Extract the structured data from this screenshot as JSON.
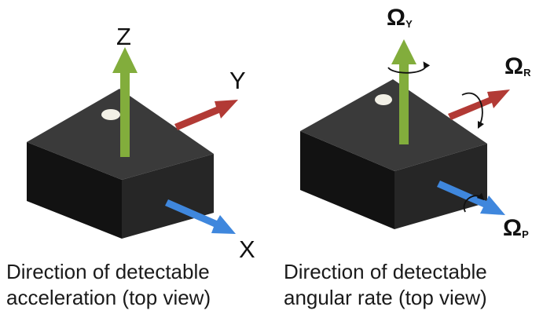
{
  "diagrams": [
    {
      "id": "acceleration",
      "axis_labels": {
        "z": "Z",
        "y": "Y",
        "x": "X"
      },
      "caption_lines": [
        "Direction of detectable",
        "acceleration (top view)"
      ]
    },
    {
      "id": "angular-rate",
      "axis_labels": {
        "yaw": {
          "symbol": "Ω",
          "subscript": "Y"
        },
        "roll": {
          "symbol": "Ω",
          "subscript": "R"
        },
        "pitch": {
          "symbol": "Ω",
          "subscript": "P"
        }
      },
      "caption_lines": [
        "Direction of detectable",
        "angular rate (top view)"
      ]
    }
  ],
  "colors": {
    "chip_top": "#3a3a3a",
    "chip_left": "#121212",
    "chip_right": "#262626",
    "pin1_dot": "#f2f0e6",
    "z_arrow": "#82ad3c",
    "y_arrow": "#b23a35",
    "x_arrow": "#3f87dd",
    "rotation_marker": "#111111"
  }
}
